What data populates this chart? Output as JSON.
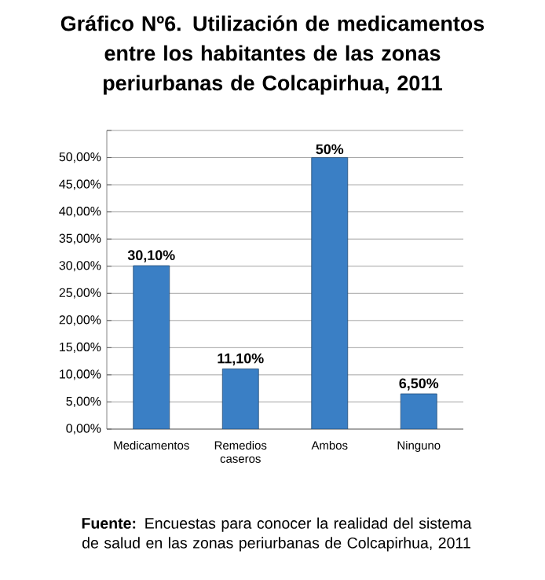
{
  "chart_data": {
    "type": "bar",
    "title": "Gráfico Nº6. Utilización de medicamentos entre los habitantes de las zonas periurbanas de Colcapirhua, 2011",
    "categories": [
      "Medicamentos",
      "Remedios caseros",
      "Ambos",
      "Ninguno"
    ],
    "values": [
      30.1,
      11.1,
      50,
      6.5
    ],
    "value_labels": [
      "30,10%",
      "11,10%",
      "50%",
      "6,50%"
    ],
    "color": "#3a7fc5",
    "ylim": [
      0,
      55
    ],
    "yticks": [
      {
        "value": 0,
        "label": "0,00%"
      },
      {
        "value": 5,
        "label": "5,00%"
      },
      {
        "value": 10,
        "label": "10,00%"
      },
      {
        "value": 15,
        "label": "15,00%"
      },
      {
        "value": 20,
        "label": "20,00%"
      },
      {
        "value": 25,
        "label": "25,00%"
      },
      {
        "value": 30,
        "label": "30,00%"
      },
      {
        "value": 35,
        "label": "35,00%"
      },
      {
        "value": 40,
        "label": "40,00%"
      },
      {
        "value": 45,
        "label": "45,00%"
      },
      {
        "value": 50,
        "label": "50,00%"
      },
      {
        "value": 55,
        "label": null
      }
    ],
    "grid": "y",
    "annotations": [
      "**Fuente:** Encuestas para conocer la realidad del sistema de salud en las zonas periurbanas de Colcapirhua, 2011"
    ]
  }
}
